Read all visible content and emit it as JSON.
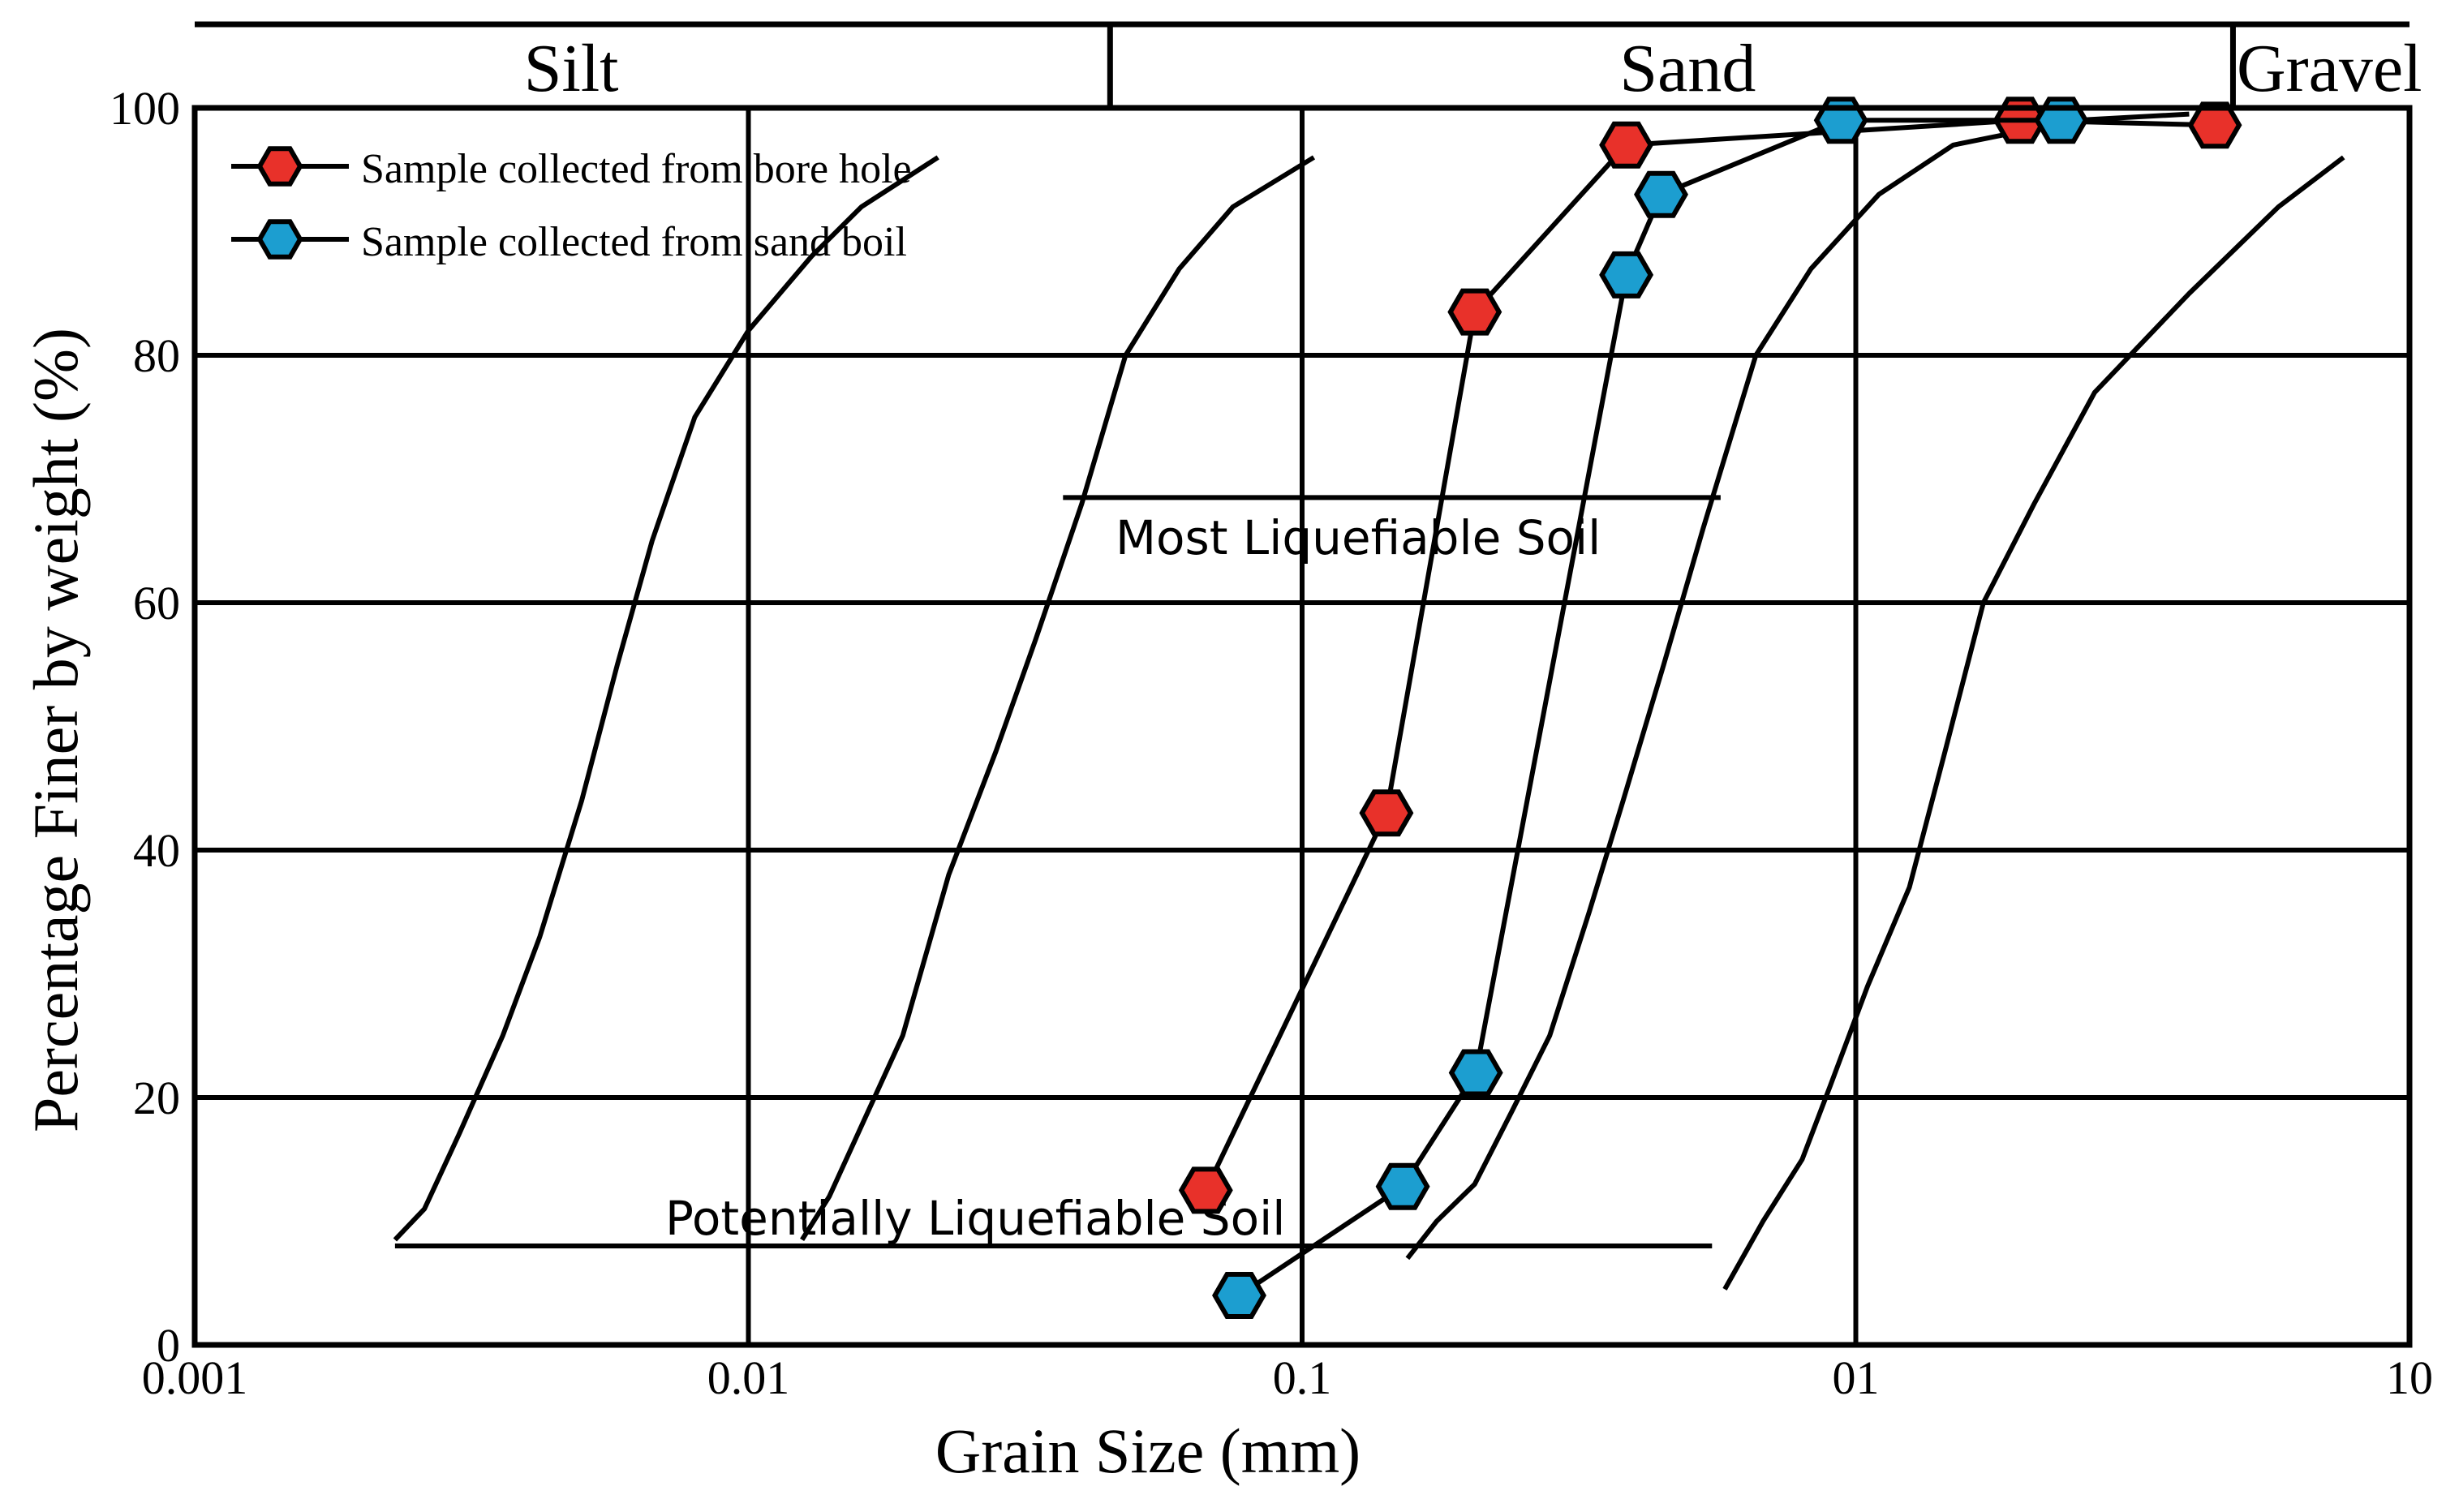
{
  "chart_data": {
    "type": "line",
    "title": "",
    "xlabel": "Grain Size (mm)",
    "ylabel": "Percentage Finer by weight (%)",
    "x_scale": "log",
    "xlim": [
      0.001,
      10
    ],
    "ylim": [
      0,
      100
    ],
    "x_ticks": [
      {
        "value": 0.001,
        "label": "0.001"
      },
      {
        "value": 0.01,
        "label": "0.01"
      },
      {
        "value": 0.1,
        "label": "0.1"
      },
      {
        "value": 1,
        "label": "01"
      },
      {
        "value": 10,
        "label": "10"
      }
    ],
    "y_ticks": [
      {
        "value": 0,
        "label": "0"
      },
      {
        "value": 20,
        "label": "20"
      },
      {
        "value": 40,
        "label": "40"
      },
      {
        "value": 60,
        "label": "60"
      },
      {
        "value": 80,
        "label": "80"
      },
      {
        "value": 100,
        "label": "100"
      }
    ],
    "grid": true,
    "soil_classes": [
      {
        "name": "Silt",
        "from": 0.001,
        "to": 0.045
      },
      {
        "name": "Sand",
        "from": 0.045,
        "to": 4.8
      },
      {
        "name": "Gravel",
        "from": 4.8,
        "to": 10
      }
    ],
    "envelope_curves": [
      {
        "name": "Potentially liquefiable soil - fine boundary",
        "points": [
          [
            0.0023,
            8.5
          ],
          [
            0.0026,
            11
          ],
          [
            0.003,
            17
          ],
          [
            0.0036,
            25
          ],
          [
            0.0042,
            33
          ],
          [
            0.005,
            44
          ],
          [
            0.0058,
            55
          ],
          [
            0.0067,
            65
          ],
          [
            0.008,
            75
          ],
          [
            0.01,
            82
          ],
          [
            0.013,
            88
          ],
          [
            0.016,
            92
          ],
          [
            0.022,
            96
          ]
        ]
      },
      {
        "name": "Most liquefiable soil - fine boundary",
        "points": [
          [
            0.0125,
            8.5
          ],
          [
            0.014,
            12
          ],
          [
            0.0165,
            19
          ],
          [
            0.019,
            25
          ],
          [
            0.023,
            38
          ],
          [
            0.028,
            48
          ],
          [
            0.033,
            57
          ],
          [
            0.04,
            68
          ],
          [
            0.048,
            80
          ],
          [
            0.06,
            87
          ],
          [
            0.075,
            92
          ],
          [
            0.105,
            96
          ]
        ]
      },
      {
        "name": "Most liquefiable soil - coarse boundary",
        "points": [
          [
            0.155,
            7
          ],
          [
            0.175,
            10
          ],
          [
            0.205,
            13
          ],
          [
            0.24,
            19
          ],
          [
            0.28,
            25
          ],
          [
            0.33,
            35
          ],
          [
            0.38,
            44
          ],
          [
            0.45,
            55
          ],
          [
            0.53,
            66
          ],
          [
            0.66,
            80
          ],
          [
            0.83,
            87
          ],
          [
            1.1,
            93
          ],
          [
            1.5,
            97
          ],
          [
            2.5,
            99
          ],
          [
            4.0,
            99.5
          ]
        ]
      },
      {
        "name": "Potentially liquefiable soil - coarse boundary",
        "points": [
          [
            0.58,
            4.5
          ],
          [
            0.68,
            10
          ],
          [
            0.8,
            15
          ],
          [
            0.9,
            21
          ],
          [
            1.05,
            29
          ],
          [
            1.25,
            37
          ],
          [
            1.45,
            48
          ],
          [
            1.7,
            60
          ],
          [
            2.1,
            68
          ],
          [
            2.7,
            77
          ],
          [
            4.0,
            85
          ],
          [
            5.8,
            92
          ],
          [
            7.6,
            96
          ]
        ]
      }
    ],
    "zones": [
      {
        "label": "Most Liquefiable Soil",
        "from": 0.037,
        "to": 0.57,
        "y": 68.5
      },
      {
        "label": "Potentially Liquefiable Soil",
        "from": 0.0023,
        "to": 0.55,
        "y": 8
      }
    ],
    "series": [
      {
        "name": "Sample collected from bore hole",
        "color": "#e8312a",
        "points": [
          [
            0.067,
            12.5
          ],
          [
            0.142,
            43
          ],
          [
            0.205,
            83.5
          ],
          [
            0.385,
            97
          ],
          [
            1.98,
            99
          ],
          [
            4.45,
            98.6
          ]
        ]
      },
      {
        "name": "Sample collected from sand boil",
        "color": "#1c9ed0",
        "points": [
          [
            0.077,
            4
          ],
          [
            0.152,
            12.8
          ],
          [
            0.206,
            22
          ],
          [
            0.385,
            86.5
          ],
          [
            0.445,
            93
          ],
          [
            0.94,
            99
          ],
          [
            2.35,
            99
          ]
        ]
      }
    ],
    "legend": "top-left"
  }
}
